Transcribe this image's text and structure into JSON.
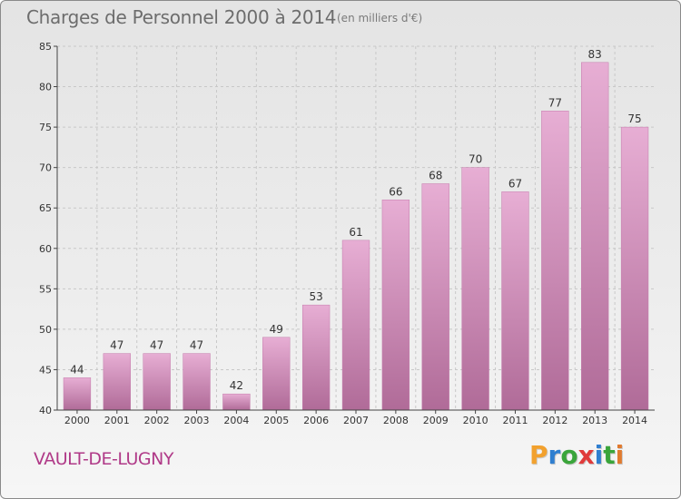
{
  "title": "Charges de Personnel 2000 à 2014",
  "subtitle": "(en milliers d'€)",
  "commune": "VAULT-DE-LUGNY",
  "logo": {
    "letters": [
      "P",
      "r",
      "o",
      "x",
      "i",
      "t",
      "i"
    ],
    "colors": [
      "#f2a12e",
      "#2f7fd0",
      "#3aa53a",
      "#e03a3a",
      "#2f7fd0",
      "#3aa53a",
      "#e07a2e"
    ]
  },
  "chart_data": {
    "type": "bar",
    "title": "Charges de Personnel 2000 à 2014",
    "xlabel": "",
    "ylabel": "",
    "categories": [
      "2000",
      "2001",
      "2002",
      "2003",
      "2004",
      "2005",
      "2006",
      "2007",
      "2008",
      "2009",
      "2010",
      "2011",
      "2012",
      "2013",
      "2014"
    ],
    "values": [
      44,
      47,
      47,
      47,
      42,
      49,
      53,
      61,
      66,
      68,
      70,
      67,
      77,
      83,
      75
    ],
    "ylim": [
      40,
      85
    ],
    "yticks": [
      40,
      45,
      50,
      55,
      60,
      65,
      70,
      75,
      80,
      85
    ],
    "grid": true,
    "colors": {
      "bar_top": "#e7aed4",
      "bar_bottom": "#b06b98",
      "bar_edge": "#c47aab",
      "grid": "#c8c8c8",
      "axis": "#444444"
    }
  }
}
